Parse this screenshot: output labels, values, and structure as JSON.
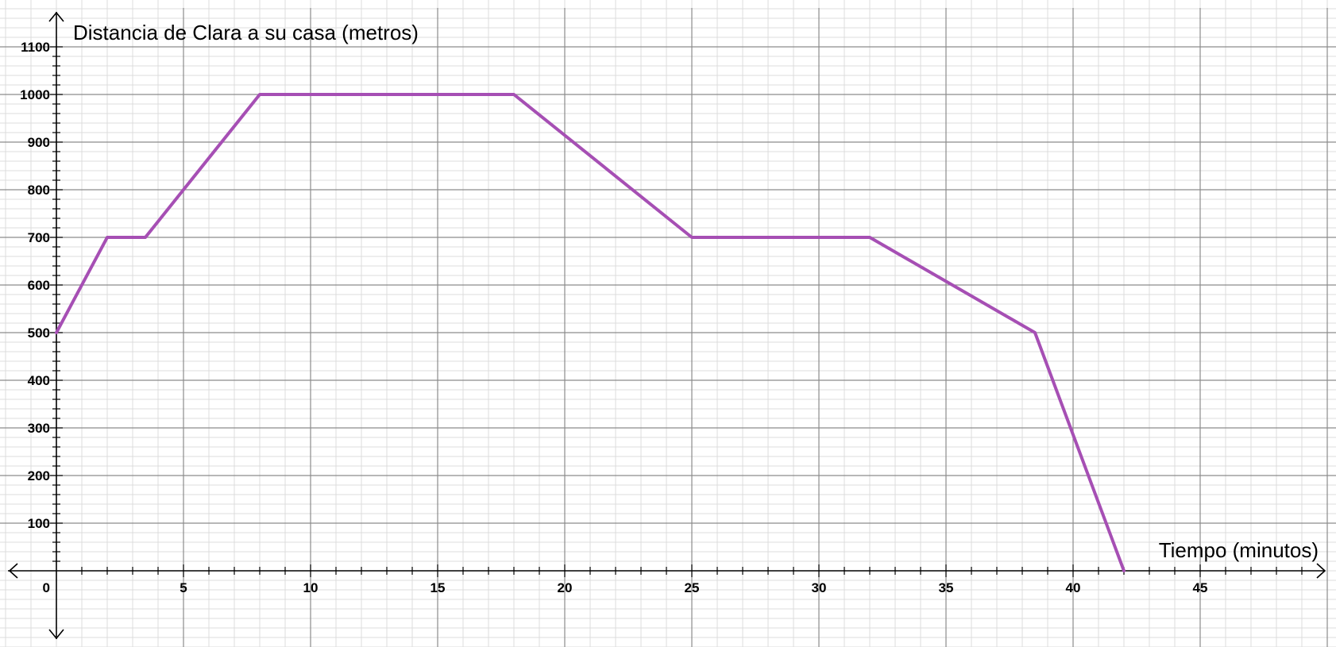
{
  "chart_data": {
    "type": "line",
    "xlabel": "Tiempo (minutos)",
    "ylabel": "Distancia de Clara a su casa (metros)",
    "x_ticks": [
      0,
      5,
      10,
      15,
      20,
      25,
      30,
      35,
      40,
      45
    ],
    "y_ticks": [
      100,
      200,
      300,
      400,
      500,
      600,
      700,
      800,
      900,
      1000,
      1100
    ],
    "xlim": [
      0,
      50
    ],
    "ylim": [
      0,
      1100
    ],
    "grid": true,
    "series": [
      {
        "color": "#a64fb4",
        "points": [
          {
            "x": 0,
            "y": 500
          },
          {
            "x": 2,
            "y": 700
          },
          {
            "x": 3.5,
            "y": 700
          },
          {
            "x": 8,
            "y": 1000
          },
          {
            "x": 18,
            "y": 1000
          },
          {
            "x": 25,
            "y": 700
          },
          {
            "x": 32,
            "y": 700
          },
          {
            "x": 38.5,
            "y": 500
          },
          {
            "x": 42,
            "y": 0
          }
        ]
      }
    ]
  }
}
